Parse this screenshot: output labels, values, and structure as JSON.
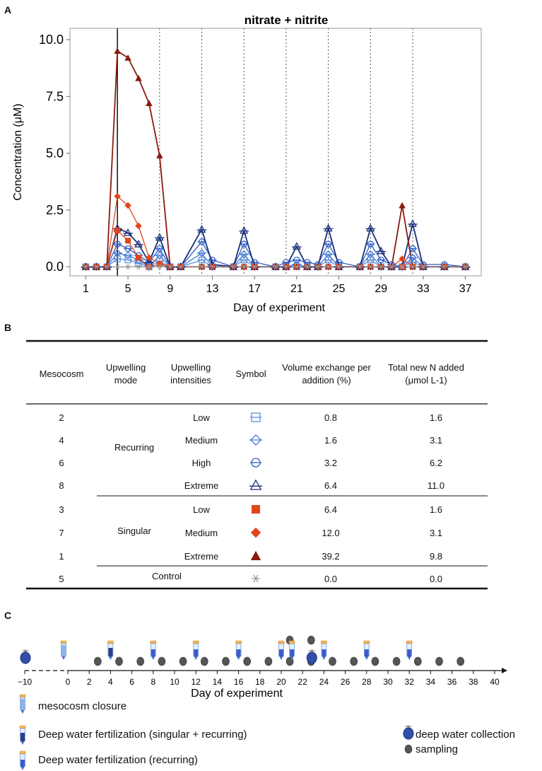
{
  "panels": {
    "a": "A",
    "b": "B",
    "c": "C"
  },
  "chart_data": {
    "type": "line",
    "title": "nitrate + nitrite",
    "xlabel": "Day of experiment",
    "ylabel": "Concentration (μM)",
    "xlim": [
      -0.5,
      38.5
    ],
    "ylim": [
      -0.4,
      10.5
    ],
    "xticks": [
      1,
      5,
      9,
      13,
      17,
      21,
      25,
      29,
      33,
      37
    ],
    "yticks": [
      0.0,
      2.5,
      5.0,
      7.5,
      10.0
    ],
    "ytick_labels": [
      "0.0",
      "2.5",
      "5.0",
      "7.5",
      "10.0"
    ],
    "solid_vline": 4,
    "dotted_vlines": [
      8,
      12,
      16,
      20,
      24,
      28,
      32
    ],
    "series": [
      {
        "name": "2",
        "color": "#5b8fe0",
        "marker": "square-open",
        "x": [
          1,
          2,
          3,
          4,
          5,
          6,
          7,
          8,
          9,
          10,
          12,
          13,
          15,
          16,
          17,
          19,
          20,
          21,
          22,
          23,
          24,
          25,
          27,
          28,
          29,
          30,
          31,
          32,
          33,
          35,
          37
        ],
        "y": [
          0,
          0,
          0,
          0.35,
          0.3,
          0.15,
          0,
          0.25,
          0,
          0,
          0.3,
          0,
          0,
          0.3,
          0,
          0,
          0,
          0,
          0,
          0,
          0.3,
          0,
          0,
          0.3,
          0,
          0,
          0,
          0.2,
          0,
          0,
          0
        ]
      },
      {
        "name": "4",
        "color": "#4a7dd6",
        "marker": "diamond-open",
        "x": [
          1,
          2,
          3,
          4,
          5,
          6,
          7,
          8,
          9,
          10,
          12,
          13,
          15,
          16,
          17,
          19,
          20,
          21,
          22,
          23,
          24,
          25,
          27,
          28,
          29,
          30,
          31,
          32,
          33,
          35,
          37
        ],
        "y": [
          0,
          0,
          0,
          0.6,
          0.5,
          0.3,
          0,
          0.5,
          0,
          0,
          0.6,
          0,
          0,
          0.55,
          0,
          0,
          0,
          0.1,
          0,
          0,
          0.55,
          0,
          0,
          0.55,
          0,
          0,
          0,
          0.4,
          0,
          0,
          0
        ]
      },
      {
        "name": "6",
        "color": "#2f5fc4",
        "marker": "circle-open",
        "x": [
          1,
          2,
          3,
          4,
          5,
          6,
          7,
          8,
          9,
          10,
          12,
          13,
          15,
          16,
          17,
          19,
          20,
          21,
          22,
          23,
          24,
          25,
          27,
          28,
          29,
          30,
          31,
          32,
          33,
          35,
          37
        ],
        "y": [
          0,
          0,
          0,
          1.0,
          0.8,
          0.5,
          0.2,
          0.8,
          0,
          0,
          1.1,
          0.3,
          0,
          1.0,
          0.2,
          0,
          0.2,
          0.3,
          0.2,
          0.1,
          1.0,
          0.2,
          0,
          1.0,
          0.3,
          0.1,
          0,
          0.8,
          0.1,
          0.1,
          0
        ]
      },
      {
        "name": "8",
        "color": "#1a2f7a",
        "marker": "triangle-open",
        "x": [
          1,
          2,
          3,
          4,
          5,
          6,
          7,
          8,
          9,
          10,
          12,
          13,
          15,
          16,
          17,
          19,
          20,
          21,
          22,
          23,
          24,
          25,
          27,
          28,
          29,
          30,
          31,
          32,
          33,
          35,
          37
        ],
        "y": [
          0,
          0,
          0,
          1.7,
          1.5,
          1.0,
          0.2,
          1.3,
          0,
          0,
          1.65,
          0.1,
          0,
          1.6,
          0,
          0,
          0,
          0.9,
          0,
          0,
          1.7,
          0,
          0,
          1.7,
          0.7,
          0,
          0,
          1.9,
          0,
          0,
          0
        ]
      },
      {
        "name": "3",
        "color": "#e0461c",
        "marker": "square",
        "x": [
          1,
          2,
          3,
          4,
          5,
          6,
          7,
          8,
          9,
          10,
          12,
          13,
          15,
          16,
          17,
          19,
          20,
          21,
          22,
          23,
          24,
          25,
          27,
          28,
          29,
          30,
          31,
          32,
          33,
          35,
          37
        ],
        "y": [
          0,
          0,
          0,
          1.6,
          1.15,
          0.4,
          0,
          0.1,
          0,
          0,
          0,
          0,
          0,
          0,
          0,
          0,
          0,
          0,
          0,
          0,
          0,
          0,
          0,
          0,
          0,
          0,
          0,
          0,
          0,
          0,
          0
        ]
      },
      {
        "name": "7",
        "color": "#e0461c",
        "marker": "diamond",
        "x": [
          1,
          2,
          3,
          4,
          5,
          6,
          7,
          8,
          9,
          10,
          12,
          13,
          15,
          16,
          17,
          19,
          20,
          21,
          22,
          23,
          24,
          25,
          27,
          28,
          29,
          30,
          31,
          32,
          33,
          35,
          37
        ],
        "y": [
          0,
          0,
          0,
          3.1,
          2.7,
          1.8,
          0.4,
          0.15,
          0,
          0,
          0,
          0,
          0,
          0,
          0,
          0,
          0,
          0,
          0,
          0,
          0,
          0,
          0,
          0,
          0,
          0,
          0.35,
          0,
          0,
          0,
          0
        ]
      },
      {
        "name": "1",
        "color": "#8b1a0e",
        "marker": "triangle",
        "x": [
          1,
          2,
          3,
          4,
          5,
          6,
          7,
          8,
          9,
          10,
          12,
          13,
          15,
          16,
          17,
          19,
          20,
          21,
          22,
          23,
          24,
          25,
          27,
          28,
          29,
          30,
          31,
          32,
          33,
          35,
          37
        ],
        "y": [
          0,
          0,
          0,
          9.5,
          9.2,
          8.3,
          7.2,
          4.9,
          0,
          0,
          0,
          0,
          0,
          0,
          0,
          0,
          0,
          0,
          0,
          0,
          0,
          0,
          0,
          0,
          0,
          0,
          2.7,
          0,
          0,
          0,
          0
        ]
      },
      {
        "name": "5",
        "color": "#999999",
        "marker": "star",
        "x": [
          1,
          2,
          3,
          4,
          5,
          6,
          7,
          8,
          9,
          10,
          12,
          13,
          15,
          16,
          17,
          19,
          20,
          21,
          22,
          23,
          24,
          25,
          27,
          28,
          29,
          30,
          31,
          32,
          33,
          35,
          37
        ],
        "y": [
          0,
          0,
          0,
          0,
          0,
          0,
          0,
          0,
          0,
          0,
          0,
          0,
          0,
          0,
          0,
          0,
          0,
          0,
          0,
          0,
          0,
          0,
          0,
          0,
          0,
          0,
          0,
          0,
          0,
          0,
          0
        ]
      }
    ]
  },
  "table": {
    "headers": [
      [
        "Mesocosm"
      ],
      [
        "Upwelling",
        "mode"
      ],
      [
        "Upwelling",
        "intensities"
      ],
      [
        "Symbol"
      ],
      [
        "Volume exchange per",
        "addition (%)"
      ],
      [
        "Total new N added",
        "(μmol L-1)"
      ]
    ],
    "groups": {
      "recurring": "Recurring",
      "singular": "Singular",
      "control": "Control"
    },
    "rows": [
      {
        "mesocosm": "2",
        "intensity": "Low",
        "marker": "square-open",
        "color": "#5b8fe0",
        "volume": "0.8",
        "n": "1.6"
      },
      {
        "mesocosm": "4",
        "intensity": "Medium",
        "marker": "diamond-open",
        "color": "#4a7dd6",
        "volume": "1.6",
        "n": "3.1"
      },
      {
        "mesocosm": "6",
        "intensity": "High",
        "marker": "circle-open",
        "color": "#2f5fc4",
        "volume": "3.2",
        "n": "6.2"
      },
      {
        "mesocosm": "8",
        "intensity": "Extreme",
        "marker": "triangle-open",
        "color": "#1a2f7a",
        "volume": "6.4",
        "n": "11.0"
      },
      {
        "mesocosm": "3",
        "intensity": "Low",
        "marker": "square",
        "color": "#e0461c",
        "volume": "6.4",
        "n": "1.6"
      },
      {
        "mesocosm": "7",
        "intensity": "Medium",
        "marker": "diamond",
        "color": "#e0461c",
        "volume": "12.0",
        "n": "3.1"
      },
      {
        "mesocosm": "1",
        "intensity": "Extreme",
        "marker": "triangle",
        "color": "#8b1a0e",
        "volume": "39.2",
        "n": "9.8"
      },
      {
        "mesocosm": "5",
        "intensity": "",
        "marker": "star",
        "color": "#999999",
        "volume": "0.0",
        "n": "0.0"
      }
    ]
  },
  "timeline": {
    "xlabel": "Day of experiment",
    "ticks": [
      -10,
      0,
      2,
      4,
      6,
      8,
      10,
      12,
      14,
      16,
      18,
      20,
      22,
      24,
      26,
      28,
      30,
      32,
      34,
      36,
      38,
      40
    ],
    "closure": [
      0
    ],
    "fert_singular_recurring": [
      4
    ],
    "fert_recurring": [
      8,
      12,
      16,
      20,
      21,
      24,
      28,
      32
    ],
    "deep_water": [
      -10,
      23
    ],
    "sampling": [
      3,
      5,
      7,
      9,
      11,
      13,
      15,
      17,
      19,
      21,
      23,
      25,
      27,
      29,
      31,
      33,
      35,
      37
    ],
    "sampling_extra": [
      21,
      23
    ]
  },
  "legend": {
    "closure": "mesocosm closure",
    "fert_both": "Deep water fertilization (singular + recurring)",
    "fert_recurring": "Deep water fertilization (recurring)",
    "deep_water": "deep water collection",
    "sampling": "sampling"
  }
}
